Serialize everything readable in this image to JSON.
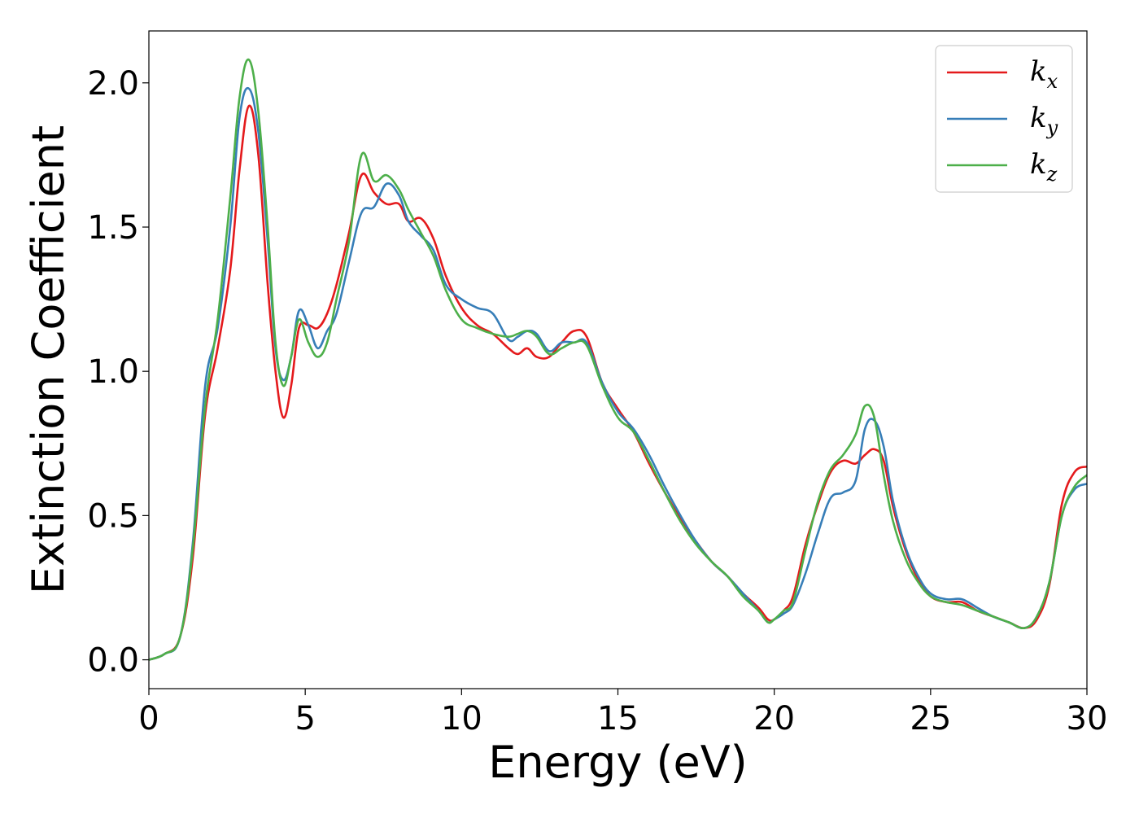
{
  "chart_data": {
    "type": "line",
    "xlabel": "Energy (eV)",
    "ylabel": "Extinction Coefficient",
    "xlim": [
      0,
      30
    ],
    "ylim": [
      -0.1,
      2.18
    ],
    "xticks": [
      0,
      5,
      10,
      15,
      20,
      25,
      30
    ],
    "xtick_labels": [
      "0",
      "5",
      "10",
      "15",
      "20",
      "25",
      "30"
    ],
    "yticks": [
      0.0,
      0.5,
      1.0,
      1.5,
      2.0
    ],
    "ytick_labels": [
      "0.0",
      "0.5",
      "1.0",
      "1.5",
      "2.0"
    ],
    "grid": false,
    "legend": {
      "position": "top-right",
      "entries": [
        {
          "base": "k",
          "sub": "x",
          "color": "#e41a1c"
        },
        {
          "base": "k",
          "sub": "y",
          "color": "#377eb8"
        },
        {
          "base": "k",
          "sub": "z",
          "color": "#4daf4a"
        }
      ]
    },
    "series": [
      {
        "color": "#e41a1c",
        "x": [
          0,
          0.5,
          1.0,
          1.4,
          1.8,
          2.2,
          2.6,
          2.9,
          3.2,
          3.5,
          3.8,
          4.05,
          4.3,
          4.55,
          4.8,
          5.1,
          5.4,
          5.7,
          6.0,
          6.4,
          6.8,
          7.2,
          7.6,
          8.0,
          8.3,
          8.7,
          9.1,
          9.5,
          10.0,
          10.5,
          11.0,
          11.5,
          11.8,
          12.1,
          12.4,
          12.8,
          13.2,
          13.6,
          14.0,
          14.5,
          15.0,
          15.5,
          16.0,
          16.5,
          17.0,
          17.5,
          18.0,
          18.5,
          19.0,
          19.5,
          19.8,
          20.0,
          20.3,
          20.6,
          21.0,
          21.4,
          21.8,
          22.2,
          22.6,
          22.9,
          23.2,
          23.5,
          23.8,
          24.2,
          24.6,
          25.0,
          25.5,
          26.0,
          26.5,
          27.0,
          27.5,
          28.0,
          28.4,
          28.8,
          29.2,
          29.6,
          30.0
        ],
        "y": [
          0.0,
          0.02,
          0.08,
          0.35,
          0.85,
          1.08,
          1.35,
          1.7,
          1.92,
          1.75,
          1.3,
          1.0,
          0.84,
          0.95,
          1.15,
          1.16,
          1.15,
          1.2,
          1.3,
          1.48,
          1.68,
          1.62,
          1.58,
          1.58,
          1.52,
          1.53,
          1.46,
          1.33,
          1.22,
          1.16,
          1.13,
          1.08,
          1.06,
          1.08,
          1.05,
          1.05,
          1.1,
          1.14,
          1.12,
          0.96,
          0.87,
          0.79,
          0.68,
          0.58,
          0.49,
          0.41,
          0.34,
          0.29,
          0.23,
          0.18,
          0.14,
          0.14,
          0.17,
          0.22,
          0.4,
          0.54,
          0.65,
          0.69,
          0.68,
          0.71,
          0.73,
          0.69,
          0.53,
          0.38,
          0.28,
          0.22,
          0.2,
          0.2,
          0.17,
          0.15,
          0.13,
          0.11,
          0.14,
          0.26,
          0.54,
          0.65,
          0.67
        ]
      },
      {
        "color": "#377eb8",
        "x": [
          0,
          0.5,
          1.0,
          1.4,
          1.8,
          2.2,
          2.6,
          2.9,
          3.2,
          3.5,
          3.8,
          4.05,
          4.3,
          4.55,
          4.8,
          5.1,
          5.4,
          5.7,
          6.0,
          6.4,
          6.8,
          7.2,
          7.6,
          8.0,
          8.3,
          8.7,
          9.1,
          9.5,
          10.0,
          10.5,
          11.0,
          11.5,
          11.8,
          12.1,
          12.4,
          12.8,
          13.2,
          13.6,
          14.0,
          14.5,
          15.0,
          15.5,
          16.0,
          16.5,
          17.0,
          17.5,
          18.0,
          18.5,
          19.0,
          19.5,
          19.8,
          20.0,
          20.3,
          20.6,
          21.0,
          21.4,
          21.8,
          22.2,
          22.6,
          22.9,
          23.2,
          23.5,
          23.8,
          24.2,
          24.6,
          25.0,
          25.5,
          26.0,
          26.5,
          27.0,
          27.5,
          28.0,
          28.4,
          28.8,
          29.2,
          29.6,
          30.0
        ],
        "y": [
          0.0,
          0.02,
          0.08,
          0.4,
          0.95,
          1.15,
          1.5,
          1.88,
          1.98,
          1.83,
          1.45,
          1.08,
          0.97,
          1.05,
          1.21,
          1.16,
          1.08,
          1.14,
          1.2,
          1.38,
          1.55,
          1.57,
          1.65,
          1.61,
          1.52,
          1.47,
          1.42,
          1.3,
          1.25,
          1.22,
          1.2,
          1.11,
          1.12,
          1.14,
          1.13,
          1.07,
          1.1,
          1.1,
          1.1,
          0.96,
          0.86,
          0.8,
          0.71,
          0.6,
          0.5,
          0.41,
          0.34,
          0.29,
          0.23,
          0.17,
          0.13,
          0.14,
          0.16,
          0.19,
          0.3,
          0.44,
          0.56,
          0.58,
          0.62,
          0.8,
          0.83,
          0.74,
          0.55,
          0.39,
          0.29,
          0.23,
          0.21,
          0.21,
          0.18,
          0.15,
          0.13,
          0.11,
          0.15,
          0.27,
          0.5,
          0.59,
          0.61
        ]
      },
      {
        "color": "#4daf4a",
        "x": [
          0,
          0.5,
          1.0,
          1.4,
          1.8,
          2.2,
          2.6,
          2.9,
          3.2,
          3.5,
          3.8,
          4.05,
          4.3,
          4.55,
          4.8,
          5.1,
          5.4,
          5.7,
          6.0,
          6.4,
          6.8,
          7.2,
          7.6,
          8.0,
          8.3,
          8.7,
          9.1,
          9.5,
          10.0,
          10.5,
          11.0,
          11.5,
          11.8,
          12.1,
          12.4,
          12.8,
          13.2,
          13.6,
          14.0,
          14.5,
          15.0,
          15.5,
          16.0,
          16.5,
          17.0,
          17.5,
          18.0,
          18.5,
          19.0,
          19.5,
          19.8,
          20.0,
          20.3,
          20.6,
          21.0,
          21.4,
          21.8,
          22.2,
          22.6,
          22.9,
          23.2,
          23.5,
          23.8,
          24.2,
          24.6,
          25.0,
          25.5,
          26.0,
          26.5,
          27.0,
          27.5,
          28.0,
          28.4,
          28.8,
          29.2,
          29.6,
          30.0
        ],
        "y": [
          0.0,
          0.02,
          0.08,
          0.38,
          0.88,
          1.18,
          1.6,
          1.95,
          2.08,
          1.9,
          1.5,
          1.1,
          0.95,
          1.05,
          1.18,
          1.1,
          1.05,
          1.1,
          1.25,
          1.45,
          1.75,
          1.66,
          1.68,
          1.63,
          1.56,
          1.48,
          1.4,
          1.28,
          1.18,
          1.15,
          1.13,
          1.12,
          1.13,
          1.14,
          1.12,
          1.06,
          1.08,
          1.1,
          1.09,
          0.95,
          0.84,
          0.79,
          0.69,
          0.58,
          0.48,
          0.4,
          0.34,
          0.29,
          0.22,
          0.17,
          0.13,
          0.14,
          0.17,
          0.2,
          0.38,
          0.55,
          0.66,
          0.71,
          0.78,
          0.88,
          0.84,
          0.64,
          0.48,
          0.35,
          0.27,
          0.22,
          0.2,
          0.19,
          0.17,
          0.15,
          0.13,
          0.11,
          0.15,
          0.27,
          0.5,
          0.6,
          0.64
        ]
      }
    ]
  }
}
